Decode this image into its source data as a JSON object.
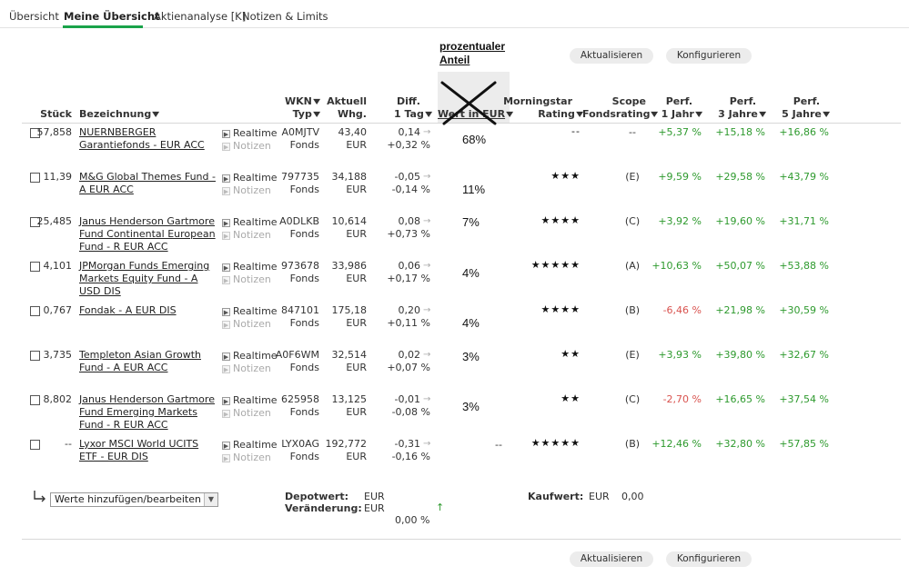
{
  "tabs": [
    {
      "label": "Übersicht"
    },
    {
      "label": "Meine Übersicht"
    },
    {
      "label": "Aktienanalyse [K]"
    },
    {
      "label": "Notizen & Limits"
    }
  ],
  "buttons": {
    "refresh": "Aktualisieren",
    "configure": "Konfigurieren"
  },
  "annotation": {
    "line1": "prozentualer",
    "line2": "Anteil"
  },
  "headers": {
    "stueck": "Stück",
    "bezeichnung": "Bezeichnung",
    "wkn": "WKN",
    "typ": "Typ",
    "aktuell": "Aktuell",
    "whg": "Whg.",
    "diff": "Diff.",
    "tag": "1 Tag",
    "wert": "Wert in EUR",
    "morningstar": "Morningstar",
    "rating": "Rating",
    "scope": "Scope",
    "fondsrating": "Fondsrating",
    "perf": "Perf.",
    "jahr1": "1 Jahr",
    "jahre3": "3 Jahre",
    "jahre5": "5 Jahre"
  },
  "row_labels": {
    "realtime": "Realtime",
    "notizen": "Notizen"
  },
  "rows": [
    {
      "stueck": "57,858",
      "name": "NUERNBERGER Garantiefonds - EUR ACC",
      "wkn": "A0MJTV",
      "typ": "Fonds",
      "aktuell": "43,40",
      "whg": "EUR",
      "diff_abs": "0,14",
      "diff_pct": "+0,32 %",
      "share": "68%",
      "morningstar": "--",
      "scope": "--",
      "p1": "+5,37 %",
      "p3": "+15,18 %",
      "p5": "+16,86 %"
    },
    {
      "stueck": "11,39",
      "name": "M&G Global Themes Fund - A EUR ACC",
      "wkn": "797735",
      "typ": "Fonds",
      "aktuell": "34,188",
      "whg": "EUR",
      "diff_abs": "-0,05",
      "diff_pct": "-0,14 %",
      "share": "11%",
      "morningstar": "★★★",
      "scope": "(E)",
      "p1": "+9,59 %",
      "p3": "+29,58 %",
      "p5": "+43,79 %"
    },
    {
      "stueck": "25,485",
      "name": "Janus Henderson Gartmore Fund Continental European Fund - R EUR ACC",
      "wkn": "A0DLKB",
      "typ": "Fonds",
      "aktuell": "10,614",
      "whg": "EUR",
      "diff_abs": "0,08",
      "diff_pct": "+0,73 %",
      "share": "7%",
      "morningstar": "★★★★",
      "scope": "(C)",
      "p1": "+3,92 %",
      "p3": "+19,60 %",
      "p5": "+31,71 %"
    },
    {
      "stueck": "4,101",
      "name": "JPMorgan Funds Emerging Markets Equity Fund - A USD DIS",
      "wkn": "973678",
      "typ": "Fonds",
      "aktuell": "33,986",
      "whg": "EUR",
      "diff_abs": "0,06",
      "diff_pct": "+0,17 %",
      "share": "4%",
      "morningstar": "★★★★★",
      "scope": "(A)",
      "p1": "+10,63 %",
      "p3": "+50,07 %",
      "p5": "+53,88 %"
    },
    {
      "stueck": "0,767",
      "name": "Fondak - A EUR DIS",
      "wkn": "847101",
      "typ": "Fonds",
      "aktuell": "175,18",
      "whg": "EUR",
      "diff_abs": "0,20",
      "diff_pct": "+0,11 %",
      "share": "4%",
      "morningstar": "★★★★",
      "scope": "(B)",
      "p1": "-6,46 %",
      "p3": "+21,98 %",
      "p5": "+30,59 %"
    },
    {
      "stueck": "3,735",
      "name": "Templeton Asian Growth Fund - A EUR ACC",
      "wkn": "A0F6WM",
      "typ": "Fonds",
      "aktuell": "32,514",
      "whg": "EUR",
      "diff_abs": "0,02",
      "diff_pct": "+0,07 %",
      "share": "3%",
      "morningstar": "★★",
      "scope": "(E)",
      "p1": "+3,93 %",
      "p3": "+39,80 %",
      "p5": "+32,67 %"
    },
    {
      "stueck": "8,802",
      "name": "Janus Henderson Gartmore Fund Emerging Markets Fund - R EUR ACC",
      "wkn": "625958",
      "typ": "Fonds",
      "aktuell": "13,125",
      "whg": "EUR",
      "diff_abs": "-0,01",
      "diff_pct": "-0,08 %",
      "share": "3%",
      "morningstar": "★★",
      "scope": "(C)",
      "p1": "-2,70 %",
      "p3": "+16,65 %",
      "p5": "+37,54 %"
    },
    {
      "stueck": "--",
      "name": "Lyxor MSCI World UCITS ETF - EUR DIS",
      "wkn": "LYX0AG",
      "typ": "Fonds",
      "aktuell": "192,772",
      "whg": "EUR",
      "diff_abs": "-0,31",
      "diff_pct": "-0,16 %",
      "share": "--",
      "morningstar": "★★★★★",
      "scope": "(B)",
      "p1": "+12,46 %",
      "p3": "+32,80 %",
      "p5": "+57,85 %"
    }
  ],
  "footer": {
    "select_value": "Werte hinzufügen/bearbeiten",
    "depotwert_label": "Depotwert:",
    "veraenderung_label": "Veränderung:",
    "depotwert_cur": "EUR",
    "veraenderung_cur": "EUR",
    "veraenderung_pct": "0,00 %",
    "kaufwert_label": "Kaufwert:",
    "kaufwert_cur": "EUR",
    "kaufwert_value": "0,00"
  },
  "colors": {
    "accent": "#1aa34a",
    "positive": "#2e9a2e",
    "negative": "#d9534f"
  }
}
